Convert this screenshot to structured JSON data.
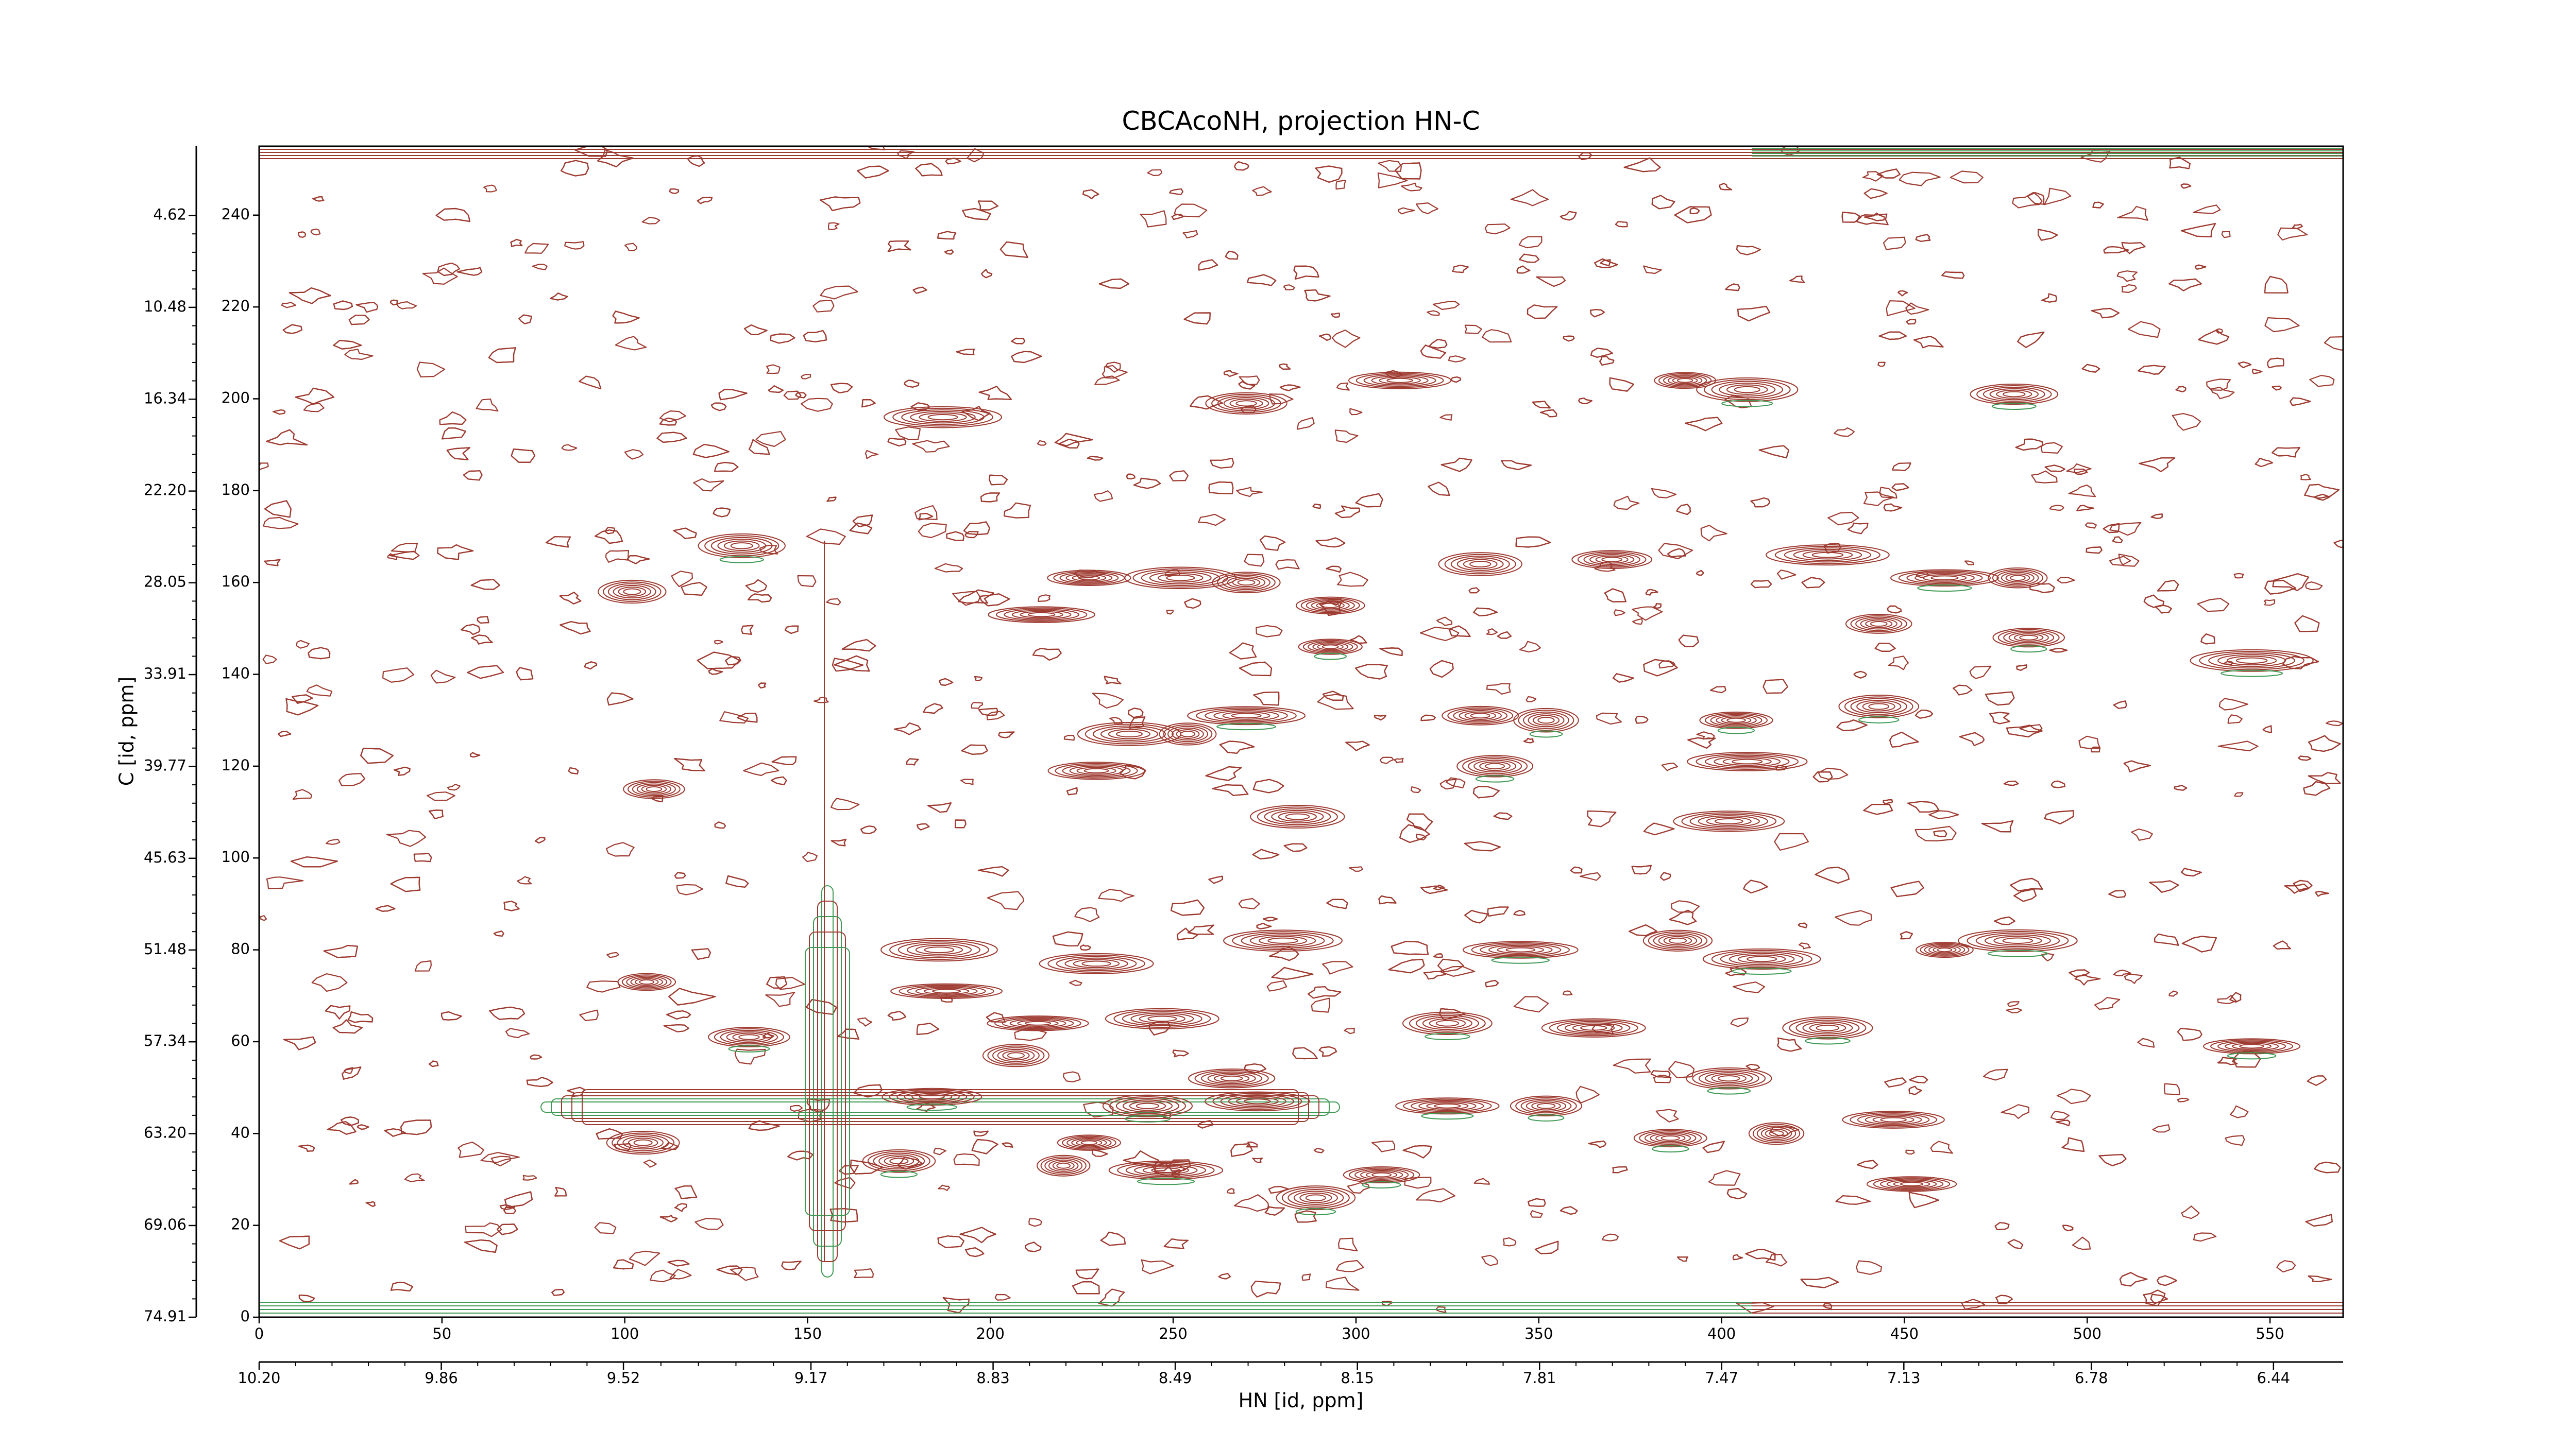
{
  "chart_data": {
    "type": "contour",
    "title": "CBCAcoNH, projection HN-C",
    "x_label": "HN [id, ppm]",
    "y_label": "C [id, ppm]",
    "xlim": [
      0,
      570
    ],
    "ylim": [
      0,
      255
    ],
    "xticks": [
      0,
      50,
      100,
      150,
      200,
      250,
      300,
      350,
      400,
      450,
      500,
      550
    ],
    "yticks": [
      0,
      20,
      40,
      60,
      80,
      100,
      120,
      140,
      160,
      180,
      200,
      220,
      240
    ],
    "x2lim": [
      10.2,
      6.31
    ],
    "x2ticks": [
      {
        "value": 10.2,
        "label": "10.20"
      },
      {
        "value": 9.86,
        "label": "9.86"
      },
      {
        "value": 9.52,
        "label": "9.52"
      },
      {
        "value": 9.17,
        "label": "9.17"
      },
      {
        "value": 8.83,
        "label": "8.83"
      },
      {
        "value": 8.49,
        "label": "8.49"
      },
      {
        "value": 8.15,
        "label": "8.15"
      },
      {
        "value": 7.81,
        "label": "7.81"
      },
      {
        "value": 7.47,
        "label": "7.47"
      },
      {
        "value": 7.13,
        "label": "7.13"
      },
      {
        "value": 6.78,
        "label": "6.78"
      },
      {
        "value": 6.44,
        "label": "6.44"
      }
    ],
    "y2lim": [
      74.91,
      0.2
    ],
    "y2ticks": [
      4.62,
      10.48,
      16.34,
      {
        "value": 22.2,
        "label": "22.20"
      },
      28.05,
      33.91,
      39.77,
      45.63,
      51.48,
      57.34,
      {
        "value": 63.2,
        "label": "63.20"
      },
      69.06,
      74.91
    ],
    "color": "#9e3b31",
    "negative_color": "#3f9a55",
    "peaks": {
      "x": [
        187,
        270,
        312,
        390,
        407,
        480,
        132,
        102,
        227,
        252,
        270,
        334,
        370,
        429,
        461,
        481,
        214,
        293,
        443,
        484,
        293,
        545,
        270,
        238,
        334,
        352,
        404,
        443,
        407,
        254,
        108,
        229,
        338,
        284,
        402,
        280,
        186,
        106,
        188,
        345,
        388,
        411,
        481,
        461,
        545,
        229,
        134,
        213,
        247,
        325,
        365,
        429,
        402,
        243,
        273,
        325,
        447,
        105,
        227,
        386,
        415,
        175,
        220,
        248,
        289,
        307,
        452,
        184,
        207,
        266,
        352
      ],
      "y": [
        196,
        199,
        204,
        204,
        202,
        201,
        168,
        158,
        161,
        161,
        160,
        164,
        165,
        166,
        161,
        161,
        153,
        155,
        151,
        148,
        146,
        143,
        131,
        127,
        131,
        130,
        130,
        133,
        121,
        127,
        115,
        119,
        120,
        109,
        108,
        82,
        80,
        73,
        71,
        80,
        82,
        78,
        82,
        80,
        59,
        77,
        61,
        64,
        65,
        64,
        63,
        63,
        52,
        46,
        47,
        46,
        43,
        38,
        38,
        39,
        40,
        34,
        33,
        32,
        26,
        31,
        29,
        48,
        57,
        52,
        46
      ]
    }
  }
}
